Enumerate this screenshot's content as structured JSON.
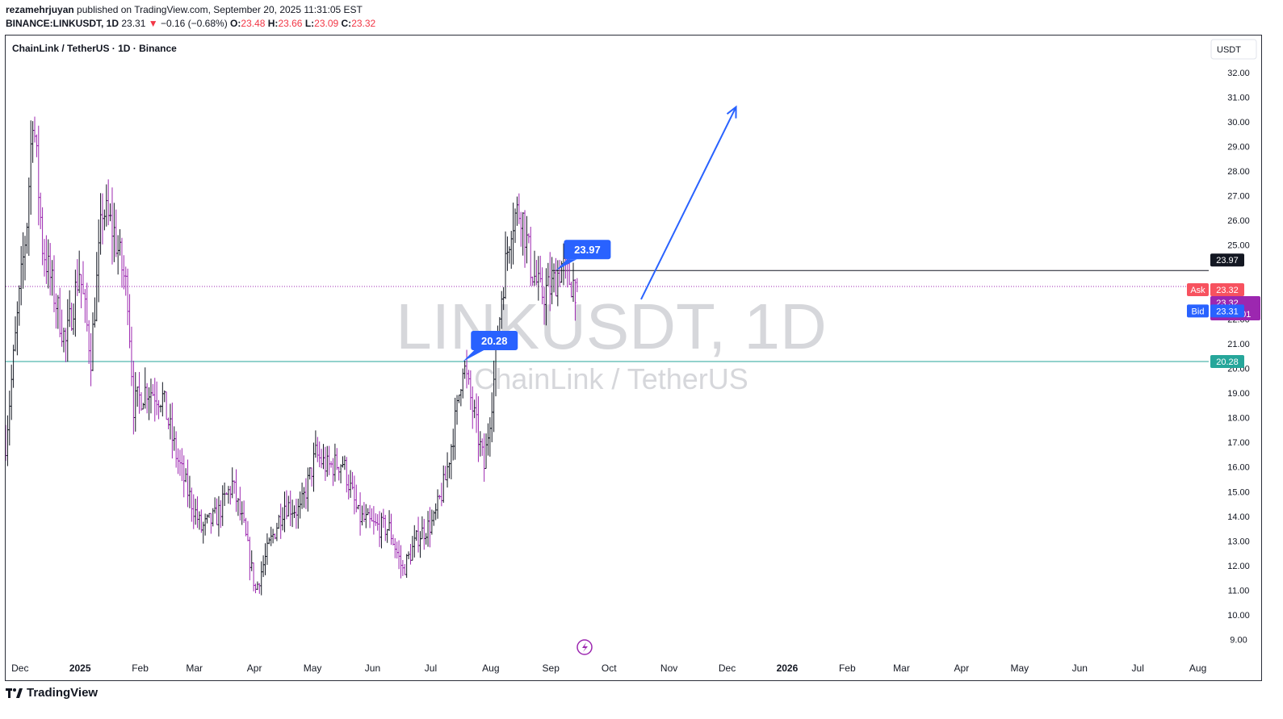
{
  "header": {
    "publisher": "rezamehrjuyan",
    "published_text": "published on TradingView.com, September 20, 2025 11:31:05 EST",
    "symbol": "BINANCE:LINKUSDT, 1D",
    "last": "23.31",
    "change_arrow": "▼",
    "change": "−0.16 (−0.68%)",
    "o_label": "O:",
    "o": "23.48",
    "h_label": "H:",
    "h": "23.66",
    "l_label": "L:",
    "l": "23.09",
    "c_label": "C:",
    "c": "23.32"
  },
  "chart": {
    "pair_title": "ChainLink / TetherUS · 1D · Binance",
    "watermark_symbol": "LINKUSDT, 1D",
    "watermark_name": "ChainLink / TetherUS",
    "currency_button": "USDT",
    "accent_blue": "#2962ff",
    "up_color": "#131722",
    "down_color": "#9c27b0",
    "teal_line_color": "#26a69a"
  },
  "footer": {
    "brand": "TradingView",
    "logo_icon": "tradingview-logo-icon"
  },
  "chart_data": {
    "type": "ohlc",
    "timeframe": "1D",
    "price_scale": {
      "ticks": [
        "32.00",
        "31.00",
        "30.00",
        "29.00",
        "28.00",
        "27.00",
        "26.00",
        "25.00",
        "22.00",
        "21.00",
        "20.00",
        "19.00",
        "18.00",
        "17.00",
        "16.00",
        "15.00",
        "14.00",
        "13.00",
        "12.00",
        "11.00",
        "10.00",
        "9.00"
      ],
      "range": [
        8.3,
        33.5
      ]
    },
    "time_axis": {
      "labels": [
        {
          "text": "Dec",
          "date": "2024-12-01"
        },
        {
          "text": "2025",
          "date": "2025-01-01",
          "bold": true
        },
        {
          "text": "Feb",
          "date": "2025-02-01"
        },
        {
          "text": "Mar",
          "date": "2025-03-01"
        },
        {
          "text": "Apr",
          "date": "2025-04-01"
        },
        {
          "text": "May",
          "date": "2025-05-01"
        },
        {
          "text": "Jun",
          "date": "2025-06-01"
        },
        {
          "text": "Jul",
          "date": "2025-07-01"
        },
        {
          "text": "Aug",
          "date": "2025-08-01"
        },
        {
          "text": "Sep",
          "date": "2025-09-01"
        },
        {
          "text": "Oct",
          "date": "2025-10-01"
        },
        {
          "text": "Nov",
          "date": "2025-11-01"
        },
        {
          "text": "Dec",
          "date": "2025-12-01"
        },
        {
          "text": "2026",
          "date": "2026-01-01",
          "bold": true
        },
        {
          "text": "Feb",
          "date": "2026-02-01"
        },
        {
          "text": "Mar",
          "date": "2026-03-01"
        },
        {
          "text": "Apr",
          "date": "2026-04-01"
        },
        {
          "text": "May",
          "date": "2026-05-01"
        },
        {
          "text": "Jun",
          "date": "2026-06-01"
        },
        {
          "text": "Jul",
          "date": "2026-07-01"
        },
        {
          "text": "Aug",
          "date": "2026-08-01"
        }
      ],
      "range": [
        "2024-11-29",
        "2026-08-12"
      ]
    },
    "closes": [
      {
        "date": "2024-11-29",
        "close": 17.0
      },
      {
        "date": "2024-12-05",
        "close": 22.0
      },
      {
        "date": "2024-12-10",
        "close": 26.0
      },
      {
        "date": "2024-12-13",
        "close": 30.5
      },
      {
        "date": "2024-12-18",
        "close": 25.0
      },
      {
        "date": "2024-12-24",
        "close": 23.0
      },
      {
        "date": "2024-12-30",
        "close": 21.0
      },
      {
        "date": "2025-01-06",
        "close": 24.0
      },
      {
        "date": "2025-01-12",
        "close": 20.5
      },
      {
        "date": "2025-01-18",
        "close": 26.5
      },
      {
        "date": "2025-01-24",
        "close": 25.5
      },
      {
        "date": "2025-01-31",
        "close": 23.0
      },
      {
        "date": "2025-02-03",
        "close": 18.5
      },
      {
        "date": "2025-02-10",
        "close": 19.2
      },
      {
        "date": "2025-02-18",
        "close": 18.8
      },
      {
        "date": "2025-02-25",
        "close": 16.5
      },
      {
        "date": "2025-03-03",
        "close": 15.0
      },
      {
        "date": "2025-03-10",
        "close": 13.5
      },
      {
        "date": "2025-03-18",
        "close": 14.0
      },
      {
        "date": "2025-03-26",
        "close": 15.3
      },
      {
        "date": "2025-04-01",
        "close": 13.5
      },
      {
        "date": "2025-04-07",
        "close": 11.0
      },
      {
        "date": "2025-04-14",
        "close": 12.8
      },
      {
        "date": "2025-04-22",
        "close": 14.5
      },
      {
        "date": "2025-04-30",
        "close": 14.2
      },
      {
        "date": "2025-05-08",
        "close": 16.5
      },
      {
        "date": "2025-05-14",
        "close": 16.0
      },
      {
        "date": "2025-05-22",
        "close": 16.2
      },
      {
        "date": "2025-05-30",
        "close": 14.0
      },
      {
        "date": "2025-06-07",
        "close": 13.6
      },
      {
        "date": "2025-06-15",
        "close": 13.5
      },
      {
        "date": "2025-06-22",
        "close": 11.8
      },
      {
        "date": "2025-06-30",
        "close": 13.2
      },
      {
        "date": "2025-07-08",
        "close": 13.8
      },
      {
        "date": "2025-07-14",
        "close": 15.5
      },
      {
        "date": "2025-07-20",
        "close": 18.3
      },
      {
        "date": "2025-07-23",
        "close": 20.28
      },
      {
        "date": "2025-07-29",
        "close": 18.0
      },
      {
        "date": "2025-08-03",
        "close": 16.0
      },
      {
        "date": "2025-08-08",
        "close": 19.5
      },
      {
        "date": "2025-08-12",
        "close": 23.0
      },
      {
        "date": "2025-08-17",
        "close": 26.0
      },
      {
        "date": "2025-08-22",
        "close": 26.5
      },
      {
        "date": "2025-08-27",
        "close": 24.2
      },
      {
        "date": "2025-09-01",
        "close": 23.0
      },
      {
        "date": "2025-09-07",
        "close": 23.3
      },
      {
        "date": "2025-09-12",
        "close": 24.2
      },
      {
        "date": "2025-09-16",
        "close": 23.6
      },
      {
        "date": "2025-09-20",
        "close": 23.32
      }
    ],
    "last_bar": {
      "date": "2025-09-20",
      "open": 23.48,
      "high": 23.66,
      "low": 23.09,
      "close": 23.32
    },
    "price_markers": [
      {
        "label": "",
        "value": "23.97",
        "price": 23.97,
        "color": "#131722"
      },
      {
        "label": "Ask",
        "value": "23.32",
        "price": 23.32,
        "color": "#f7525f"
      },
      {
        "label": "",
        "value": "23.32",
        "sub": "07:29:01",
        "price": 23.32,
        "color": "#9c27b0"
      },
      {
        "label": "Bid",
        "value": "23.31",
        "price": 23.31,
        "color": "#2962ff"
      },
      {
        "label": "",
        "value": "20.28",
        "price": 20.28,
        "color": "#26a69a"
      }
    ],
    "annotations": [
      {
        "type": "callout",
        "text": "20.28",
        "date": "2025-07-23",
        "price": 20.28
      },
      {
        "type": "callout",
        "text": "23.97",
        "date": "2025-09-09",
        "price": 23.97
      },
      {
        "type": "arrow",
        "from": {
          "date": "2025-10-23",
          "price": 22.8
        },
        "to": {
          "date": "2025-12-11",
          "price": 30.6
        }
      },
      {
        "type": "hline",
        "price": 23.97,
        "from_date": "2025-09-07",
        "color": "#131722"
      },
      {
        "type": "hline",
        "price": 20.28,
        "color": "#26a69a"
      },
      {
        "type": "hline_dotted",
        "price": 23.32,
        "color": "#9c27b0"
      }
    ],
    "grid": false
  }
}
